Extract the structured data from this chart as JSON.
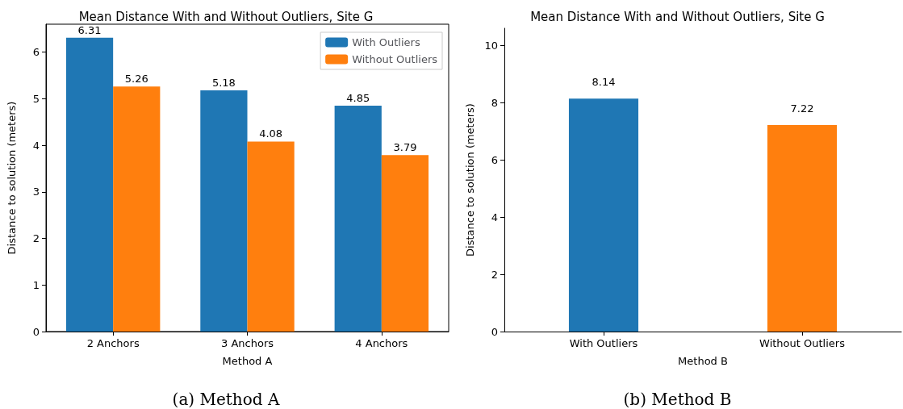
{
  "chart_data": [
    {
      "type": "bar",
      "title": "Mean Distance With and Without Outliers, Site G",
      "xlabel": "Method A",
      "ylabel": "Distance to solution (meters)",
      "categories": [
        "2 Anchors",
        "3 Anchors",
        "4 Anchors"
      ],
      "series": [
        {
          "name": "With Outliers",
          "color": "#1f77b4",
          "values": [
            6.31,
            5.18,
            4.85
          ]
        },
        {
          "name": "Without Outliers",
          "color": "#ff7f0e",
          "values": [
            5.26,
            4.08,
            3.79
          ]
        }
      ],
      "ylim": [
        0,
        6.6
      ],
      "yticks": [
        0,
        1,
        2,
        3,
        4,
        5,
        6
      ],
      "data_labels": true,
      "legend": "top right",
      "grid": false,
      "annotations": [
        "(a) Method A"
      ]
    },
    {
      "type": "bar",
      "title": "Mean Distance With and Without Outliers, Site G",
      "xlabel": "Method B",
      "ylabel": "Distance to solution (meters)",
      "categories": [
        "With Outliers",
        "Without Outliers"
      ],
      "values": [
        8.14,
        7.22
      ],
      "colors": [
        "#1f77b4",
        "#ff7f0e"
      ],
      "ylim": [
        0,
        10.6
      ],
      "yticks": [
        0,
        2,
        4,
        6,
        8,
        10
      ],
      "data_labels": true,
      "legend": false,
      "grid": false,
      "annotations": [
        "(b) Method B"
      ]
    }
  ]
}
